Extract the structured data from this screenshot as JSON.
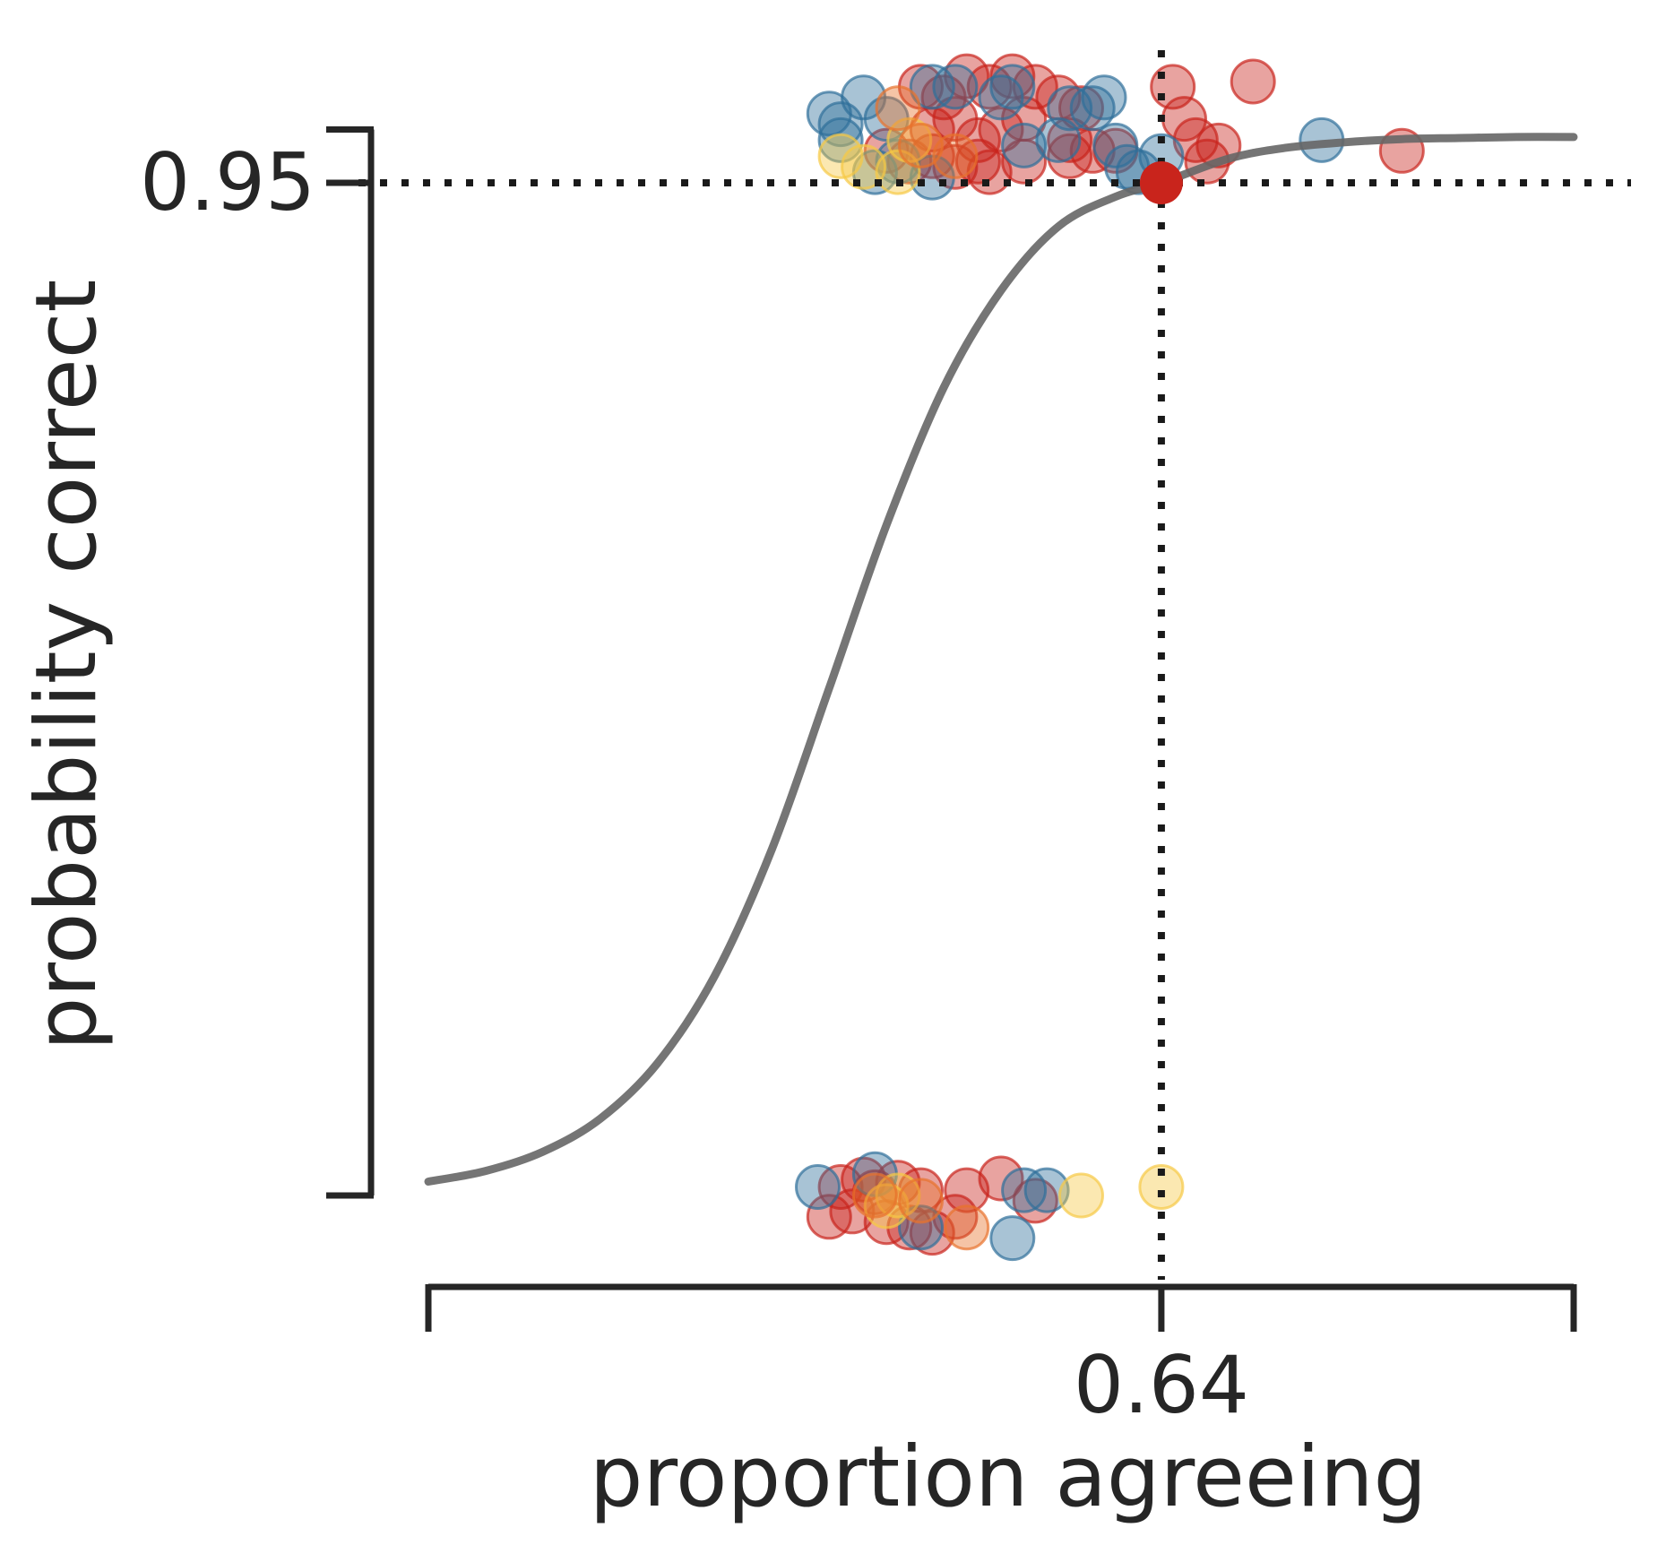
{
  "chart_data": {
    "type": "scatter",
    "title": "",
    "xlabel": "proportion agreeing",
    "ylabel": "probability correct",
    "xlim": [
      0,
      1
    ],
    "ylim": [
      -0.05,
      1.07
    ],
    "x_ticks": [
      0,
      0.64,
      1
    ],
    "x_tick_labels": [
      "",
      "0.64",
      ""
    ],
    "y_ticks": [
      0,
      0.95,
      1
    ],
    "y_tick_labels": [
      "",
      "0.95",
      ""
    ],
    "grid": false,
    "legend": "none",
    "reference_lines": {
      "x": 0.64,
      "y": 0.95
    },
    "highlight_point": {
      "x": 0.64,
      "y": 0.95,
      "color": "#c9241c"
    },
    "fit_curve": {
      "type": "logistic",
      "color": "#666666",
      "x": [
        0,
        0.05,
        0.1,
        0.15,
        0.2,
        0.25,
        0.3,
        0.35,
        0.4,
        0.45,
        0.5,
        0.55,
        0.6,
        0.64,
        0.7,
        0.75,
        0.8,
        0.85,
        0.9,
        0.95,
        1.0
      ],
      "y": [
        0.013,
        0.023,
        0.041,
        0.072,
        0.124,
        0.206,
        0.325,
        0.476,
        0.629,
        0.758,
        0.849,
        0.909,
        0.937,
        0.95,
        0.973,
        0.983,
        0.988,
        0.991,
        0.992,
        0.993,
        0.993
      ]
    },
    "series": [
      {
        "color": "#c9241c",
        "points": [
          [
            0.43,
            1.04
          ],
          [
            0.45,
            1.03
          ],
          [
            0.47,
            1.05
          ],
          [
            0.49,
            1.04
          ],
          [
            0.51,
            1.05
          ],
          [
            0.53,
            1.04
          ],
          [
            0.55,
            1.03
          ],
          [
            0.57,
            1.02
          ],
          [
            0.44,
            1.0
          ],
          [
            0.46,
            1.01
          ],
          [
            0.48,
            0.99
          ],
          [
            0.5,
            1.0
          ],
          [
            0.52,
            1.01
          ],
          [
            0.56,
            0.99
          ],
          [
            0.58,
            0.98
          ],
          [
            0.4,
            0.98
          ],
          [
            0.42,
            0.97
          ],
          [
            0.44,
            0.975
          ],
          [
            0.46,
            0.965
          ],
          [
            0.48,
            0.97
          ],
          [
            0.49,
            0.96
          ],
          [
            0.52,
            0.97
          ],
          [
            0.56,
            0.975
          ],
          [
            0.6,
            0.98
          ],
          [
            0.65,
            1.04
          ],
          [
            0.66,
            1.01
          ],
          [
            0.67,
            0.99
          ],
          [
            0.69,
            0.985
          ],
          [
            0.68,
            0.97
          ],
          [
            0.72,
            1.045
          ],
          [
            0.85,
            0.98
          ],
          [
            0.36,
            0.008
          ],
          [
            0.38,
            0.015
          ],
          [
            0.39,
            0.003
          ],
          [
            0.41,
            0.012
          ],
          [
            0.43,
            0.005
          ],
          [
            0.35,
            -0.02
          ],
          [
            0.37,
            -0.015
          ],
          [
            0.4,
            -0.025
          ],
          [
            0.42,
            -0.03
          ],
          [
            0.44,
            -0.035
          ],
          [
            0.46,
            -0.02
          ],
          [
            0.47,
            0.005
          ],
          [
            0.5,
            0.016
          ],
          [
            0.53,
            -0.005
          ]
        ]
      },
      {
        "color": "#2f6f9a",
        "points": [
          [
            0.35,
            1.015
          ],
          [
            0.36,
            1.005
          ],
          [
            0.38,
            1.03
          ],
          [
            0.36,
            0.99
          ],
          [
            0.39,
            0.96
          ],
          [
            0.4,
            1.01
          ],
          [
            0.41,
            0.97
          ],
          [
            0.44,
            0.955
          ],
          [
            0.44,
            1.04
          ],
          [
            0.46,
            1.04
          ],
          [
            0.5,
            1.03
          ],
          [
            0.51,
            1.04
          ],
          [
            0.52,
            0.985
          ],
          [
            0.55,
            0.99
          ],
          [
            0.56,
            1.02
          ],
          [
            0.58,
            1.02
          ],
          [
            0.59,
            1.03
          ],
          [
            0.6,
            0.985
          ],
          [
            0.61,
            0.965
          ],
          [
            0.62,
            0.96
          ],
          [
            0.64,
            0.975
          ],
          [
            0.78,
            0.99
          ],
          [
            0.34,
            0.008
          ],
          [
            0.39,
            0.02
          ],
          [
            0.43,
            -0.03
          ],
          [
            0.51,
            -0.04
          ],
          [
            0.52,
            0.005
          ],
          [
            0.54,
            0.005
          ]
        ]
      },
      {
        "color": "#f6c945",
        "points": [
          [
            0.36,
            0.975
          ],
          [
            0.38,
            0.965
          ],
          [
            0.41,
            0.96
          ],
          [
            0.42,
            0.99
          ],
          [
            0.4,
            -0.01
          ],
          [
            0.41,
            0.0
          ],
          [
            0.57,
            0.0
          ],
          [
            0.64,
            0.008
          ]
        ]
      },
      {
        "color": "#e8722c",
        "points": [
          [
            0.41,
            1.02
          ],
          [
            0.43,
            0.985
          ],
          [
            0.46,
            0.975
          ],
          [
            0.39,
            0.0
          ],
          [
            0.43,
            -0.005
          ],
          [
            0.47,
            -0.03
          ]
        ]
      }
    ]
  }
}
